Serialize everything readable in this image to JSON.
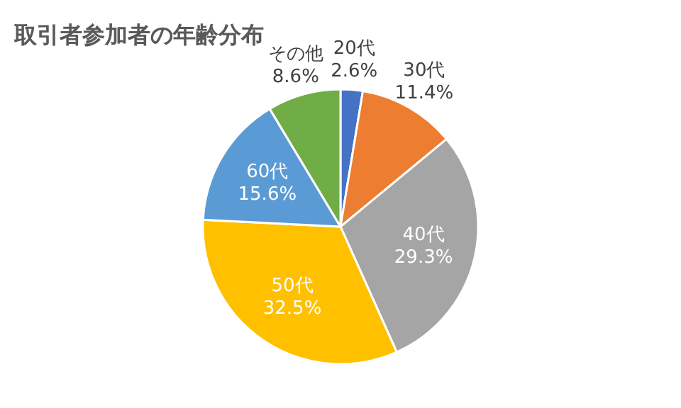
{
  "chart_data": {
    "type": "pie",
    "title": "取引者参加者の年齢分布",
    "categories": [
      "20代",
      "30代",
      "40代",
      "50代",
      "60代",
      "その他"
    ],
    "values": [
      2.6,
      11.4,
      29.3,
      32.5,
      15.6,
      8.6
    ],
    "value_labels": [
      "2.6%",
      "11.4%",
      "29.3%",
      "32.5%",
      "15.6%",
      "8.6%"
    ],
    "colors": [
      "#4472c4",
      "#ed7d31",
      "#a5a5a5",
      "#ffc000",
      "#5b9bd5",
      "#70ad47"
    ],
    "legend": false
  }
}
